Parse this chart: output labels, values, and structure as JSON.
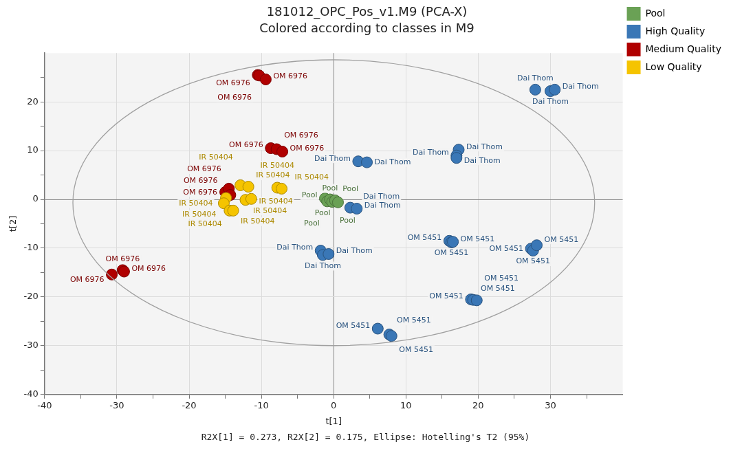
{
  "chart_data": {
    "type": "scatter",
    "title": "181012_OPC_Pos_v1.M9 (PCA-X)",
    "subtitle": "Colored according to classes in M9",
    "xlabel": "t[1]",
    "ylabel": "t[2]",
    "annotations": [
      "R2X[1] = 0.273, R2X[2] = 0.175, Ellipse: Hotelling's T2 (95%)"
    ],
    "xlim": [
      -40,
      40
    ],
    "ylim": [
      -40,
      30
    ],
    "xticks": [
      -40,
      {
        "value": -35,
        "label": null
      },
      -30,
      {
        "value": -25,
        "label": null
      },
      -20,
      {
        "value": -15,
        "label": null
      },
      -10,
      {
        "value": -5,
        "label": null
      },
      0,
      {
        "value": 5,
        "label": null
      },
      10,
      {
        "value": 15,
        "label": null
      },
      20,
      {
        "value": 25,
        "label": null
      },
      30,
      {
        "value": 35,
        "label": null
      }
    ],
    "yticks": [
      -40,
      {
        "value": -35,
        "label": null
      },
      -30,
      {
        "value": -25,
        "label": null
      },
      -20,
      {
        "value": -15,
        "label": null
      },
      -10,
      {
        "value": -5,
        "label": null
      },
      0,
      {
        "value": 5,
        "label": null
      },
      10,
      {
        "value": 15,
        "label": null
      },
      20,
      {
        "value": 25,
        "label": null
      }
    ],
    "grid": true,
    "legend": "top right",
    "marker": "circle",
    "series": [
      {
        "name": "Pool",
        "color": "#6aa155",
        "x": [
          -1.2,
          -0.9,
          -0.5,
          -0.2,
          0.2,
          0.6
        ],
        "values": [
          0.2,
          -0.4,
          0,
          -0.5,
          -0.2,
          -0.6
        ],
        "value_labels": [
          "Pool",
          "Pool",
          "Pool",
          "Pool",
          "Pool",
          "Pool"
        ]
      },
      {
        "name": "High Quality",
        "color": "#3a77b6",
        "x": [
          27.9,
          30.0,
          30.6,
          17.3,
          17.0,
          17.0,
          3.4,
          4.6,
          2.3,
          3.2,
          -1.8,
          -1.5,
          -0.7,
          16.0,
          16.3,
          16.5,
          27.3,
          27.6,
          28.1,
          19.0,
          19.3,
          19.8,
          6.1,
          7.7,
          8.0
        ],
        "values": [
          22.5,
          22.2,
          22.5,
          10.2,
          9.0,
          8.5,
          7.8,
          7.6,
          -1.7,
          -1.9,
          -10.5,
          -11.4,
          -11.2,
          -8.5,
          -8.8,
          -8.7,
          -10.1,
          -10.5,
          -9.4,
          -20.5,
          -20.6,
          -20.7,
          -26.5,
          -27.7,
          -28.0
        ],
        "value_labels": [
          "Dai Thom",
          "Dai Thom",
          "Dai Thom",
          "Dai Thom",
          "Dai Thom",
          "Dai Thom",
          "Dai Thom",
          "Dai Thom",
          "Dai Thom",
          "Dai Thom",
          "Dai Thom",
          "Dai Thom",
          "Dai Thom",
          "OM 5451",
          "OM 5451",
          "OM 5451",
          "OM 5451",
          "OM 5451",
          "OM 5451",
          "OM 5451",
          "OM 5451",
          "OM 5451",
          "OM 5451",
          "OM 5451",
          "OM 5451"
        ]
      },
      {
        "name": "Medium Quality",
        "color": "#b00000",
        "x": [
          -10.5,
          -10.3,
          -9.4,
          -8.7,
          -7.9,
          -7.1,
          -15.0,
          -14.5,
          -14.3,
          -30.7,
          -29.2,
          -29.0
        ],
        "values": [
          25.5,
          25.4,
          24.6,
          10.5,
          10.3,
          9.8,
          1.5,
          2.2,
          0.9,
          -15.4,
          -14.5,
          -14.8
        ],
        "value_labels": [
          "OM 6976",
          "OM 6976",
          "OM 6976",
          "OM 6976",
          "OM 6976",
          "OM 6976",
          "OM 6976",
          "OM 6976",
          "OM 6976",
          "OM 6976",
          "OM 6976",
          "OM 6976"
        ]
      },
      {
        "name": "Low Quality",
        "color": "#f5c400",
        "x": [
          -12.9,
          -11.8,
          -7.8,
          -7.2,
          -14.9,
          -15.2,
          -12.2,
          -11.4,
          -14.4,
          -13.9
        ],
        "values": [
          2.9,
          2.6,
          2.4,
          2.2,
          0.3,
          -0.8,
          -0.1,
          0.1,
          -2.3,
          -2.3
        ],
        "value_labels": [
          "IR 50404",
          "IR 50404",
          "IR 50404",
          "IR 50404",
          "IR 50404",
          "IR 50404",
          "IR 50404",
          "IR 50404",
          "IR 50404",
          "IR 50404"
        ]
      }
    ]
  }
}
